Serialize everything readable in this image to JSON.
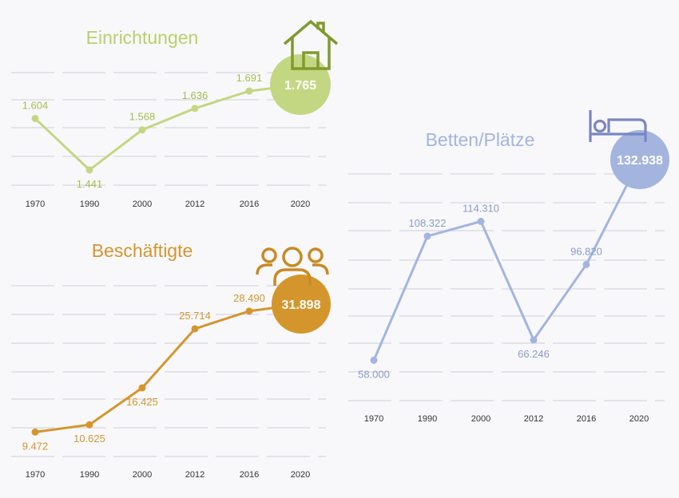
{
  "chart_data": [
    {
      "type": "line",
      "title": "Einrichtungen",
      "categories": [
        "1970",
        "1990",
        "2000",
        "2012",
        "2016",
        "2020"
      ],
      "values": [
        1604,
        1441,
        1568,
        1636,
        1691,
        1765
      ],
      "value_labels": [
        "1.604",
        "1.441",
        "1.568",
        "1.636",
        "1.691",
        "1.765"
      ],
      "ylim": [
        1380,
        1800
      ],
      "grid": true,
      "color": "#b9d06a",
      "icon": "house-icon"
    },
    {
      "type": "line",
      "title": "Beschäftigte",
      "categories": [
        "1970",
        "1990",
        "2000",
        "2012",
        "2016",
        "2020"
      ],
      "values": [
        9472,
        10625,
        16425,
        25714,
        28490,
        31898
      ],
      "value_labels": [
        "9.472",
        "10.625",
        "16.425",
        "25.714",
        "28.490",
        "31.898"
      ],
      "ylim": [
        5000,
        35000
      ],
      "grid": true,
      "color": "#d4962c",
      "icon": "people-group-icon"
    },
    {
      "type": "line",
      "title": "Betten/Plätze",
      "categories": [
        "1970",
        "1990",
        "2000",
        "2012",
        "2016",
        "2020"
      ],
      "values": [
        58000,
        108322,
        114310,
        66246,
        96820,
        132938
      ],
      "value_labels": [
        "58.000",
        "108.322",
        "114.310",
        "66.246",
        "96.820",
        "132.938"
      ],
      "ylim": [
        40000,
        140000
      ],
      "grid": true,
      "color": "#a3b5df",
      "icon": "bed-icon"
    }
  ]
}
